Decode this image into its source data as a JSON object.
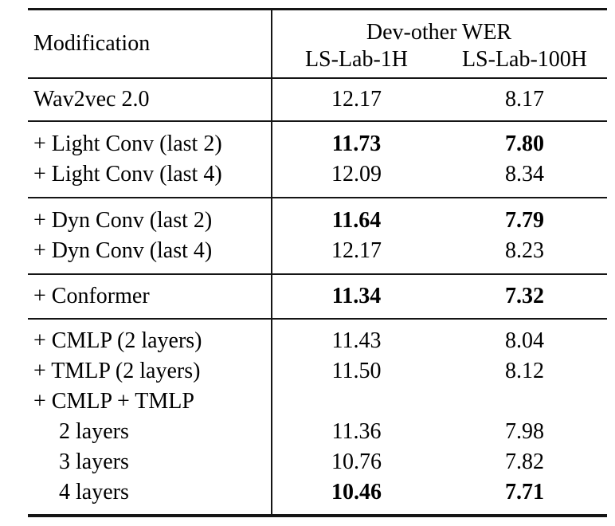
{
  "colors": {
    "background": "#ffffff",
    "text": "#000000",
    "rule": "#151515"
  },
  "table": {
    "header": {
      "modification": "Modification",
      "group_title": "Dev-other WER",
      "col_1h": "LS-Lab-1H",
      "col_100h": "LS-Lab-100H"
    },
    "groups": [
      {
        "rows": [
          {
            "label": "Wav2vec 2.0",
            "wer_1h": "12.17",
            "wer_100h": "8.17",
            "bold": false,
            "indent": false
          }
        ]
      },
      {
        "rows": [
          {
            "label": "+ Light Conv (last 2)",
            "wer_1h": "11.73",
            "wer_100h": "7.80",
            "bold": true,
            "indent": false
          },
          {
            "label": "+ Light Conv (last 4)",
            "wer_1h": "12.09",
            "wer_100h": "8.34",
            "bold": false,
            "indent": false
          }
        ]
      },
      {
        "rows": [
          {
            "label": "+ Dyn Conv (last 2)",
            "wer_1h": "11.64",
            "wer_100h": "7.79",
            "bold": true,
            "indent": false
          },
          {
            "label": "+ Dyn Conv (last 4)",
            "wer_1h": "12.17",
            "wer_100h": "8.23",
            "bold": false,
            "indent": false
          }
        ]
      },
      {
        "rows": [
          {
            "label": "+ Conformer",
            "wer_1h": "11.34",
            "wer_100h": "7.32",
            "bold": true,
            "indent": false
          }
        ]
      },
      {
        "rows": [
          {
            "label": "+ CMLP (2 layers)",
            "wer_1h": "11.43",
            "wer_100h": "8.04",
            "bold": false,
            "indent": false
          },
          {
            "label": "+ TMLP (2 layers)",
            "wer_1h": "11.50",
            "wer_100h": "8.12",
            "bold": false,
            "indent": false
          },
          {
            "label": "+ CMLP + TMLP",
            "wer_1h": "",
            "wer_100h": "",
            "bold": false,
            "indent": false
          },
          {
            "label": "2 layers",
            "wer_1h": "11.36",
            "wer_100h": "7.98",
            "bold": false,
            "indent": true
          },
          {
            "label": "3 layers",
            "wer_1h": "10.76",
            "wer_100h": "7.82",
            "bold": false,
            "indent": true
          },
          {
            "label": "4 layers",
            "wer_1h": "10.46",
            "wer_100h": "7.71",
            "bold": true,
            "indent": true
          }
        ]
      }
    ]
  }
}
